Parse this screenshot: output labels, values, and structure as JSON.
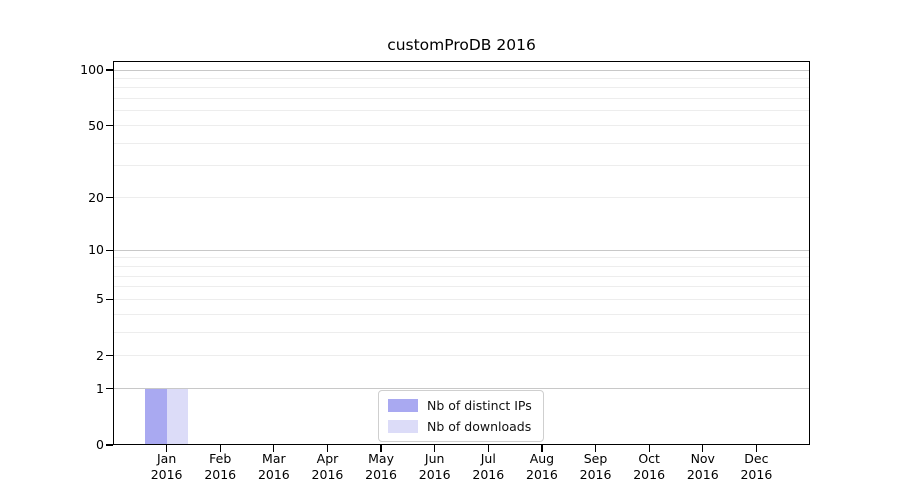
{
  "title": "customProDB 2016",
  "chart_data": {
    "type": "bar",
    "title": "customProDB 2016",
    "categories": [
      "Jan",
      "Feb",
      "Mar",
      "Apr",
      "May",
      "Jun",
      "Jul",
      "Aug",
      "Sep",
      "Oct",
      "Nov",
      "Dec"
    ],
    "category_year": "2016",
    "series": [
      {
        "name": "Nb of distinct IPs",
        "color": "#a9a9f1",
        "values": [
          1,
          0,
          0,
          0,
          0,
          0,
          0,
          0,
          0,
          0,
          0,
          0
        ]
      },
      {
        "name": "Nb of downloads",
        "color": "#dcdcf8",
        "values": [
          1,
          0,
          0,
          0,
          0,
          0,
          0,
          0,
          0,
          0,
          0,
          0
        ]
      }
    ],
    "y_axis": {
      "scale": "log1p",
      "tick_values": [
        0,
        1,
        2,
        5,
        10,
        20,
        50,
        100
      ],
      "tick_labels": [
        "0",
        "1",
        "2",
        "5",
        "10",
        "20",
        "50",
        "100"
      ],
      "minor_tick_values": [
        3,
        4,
        6,
        7,
        8,
        9,
        30,
        40,
        60,
        70,
        80,
        90
      ],
      "ylim": [
        0,
        113
      ]
    },
    "grid": {
      "major_color": "#c8c8c8",
      "minor_color": "#ededed",
      "major_values": [
        1,
        10,
        100
      ]
    },
    "legend": {
      "position": "bottom-center",
      "entries": [
        "Nb of distinct IPs",
        "Nb of downloads"
      ]
    },
    "xlabel": "",
    "ylabel": ""
  }
}
